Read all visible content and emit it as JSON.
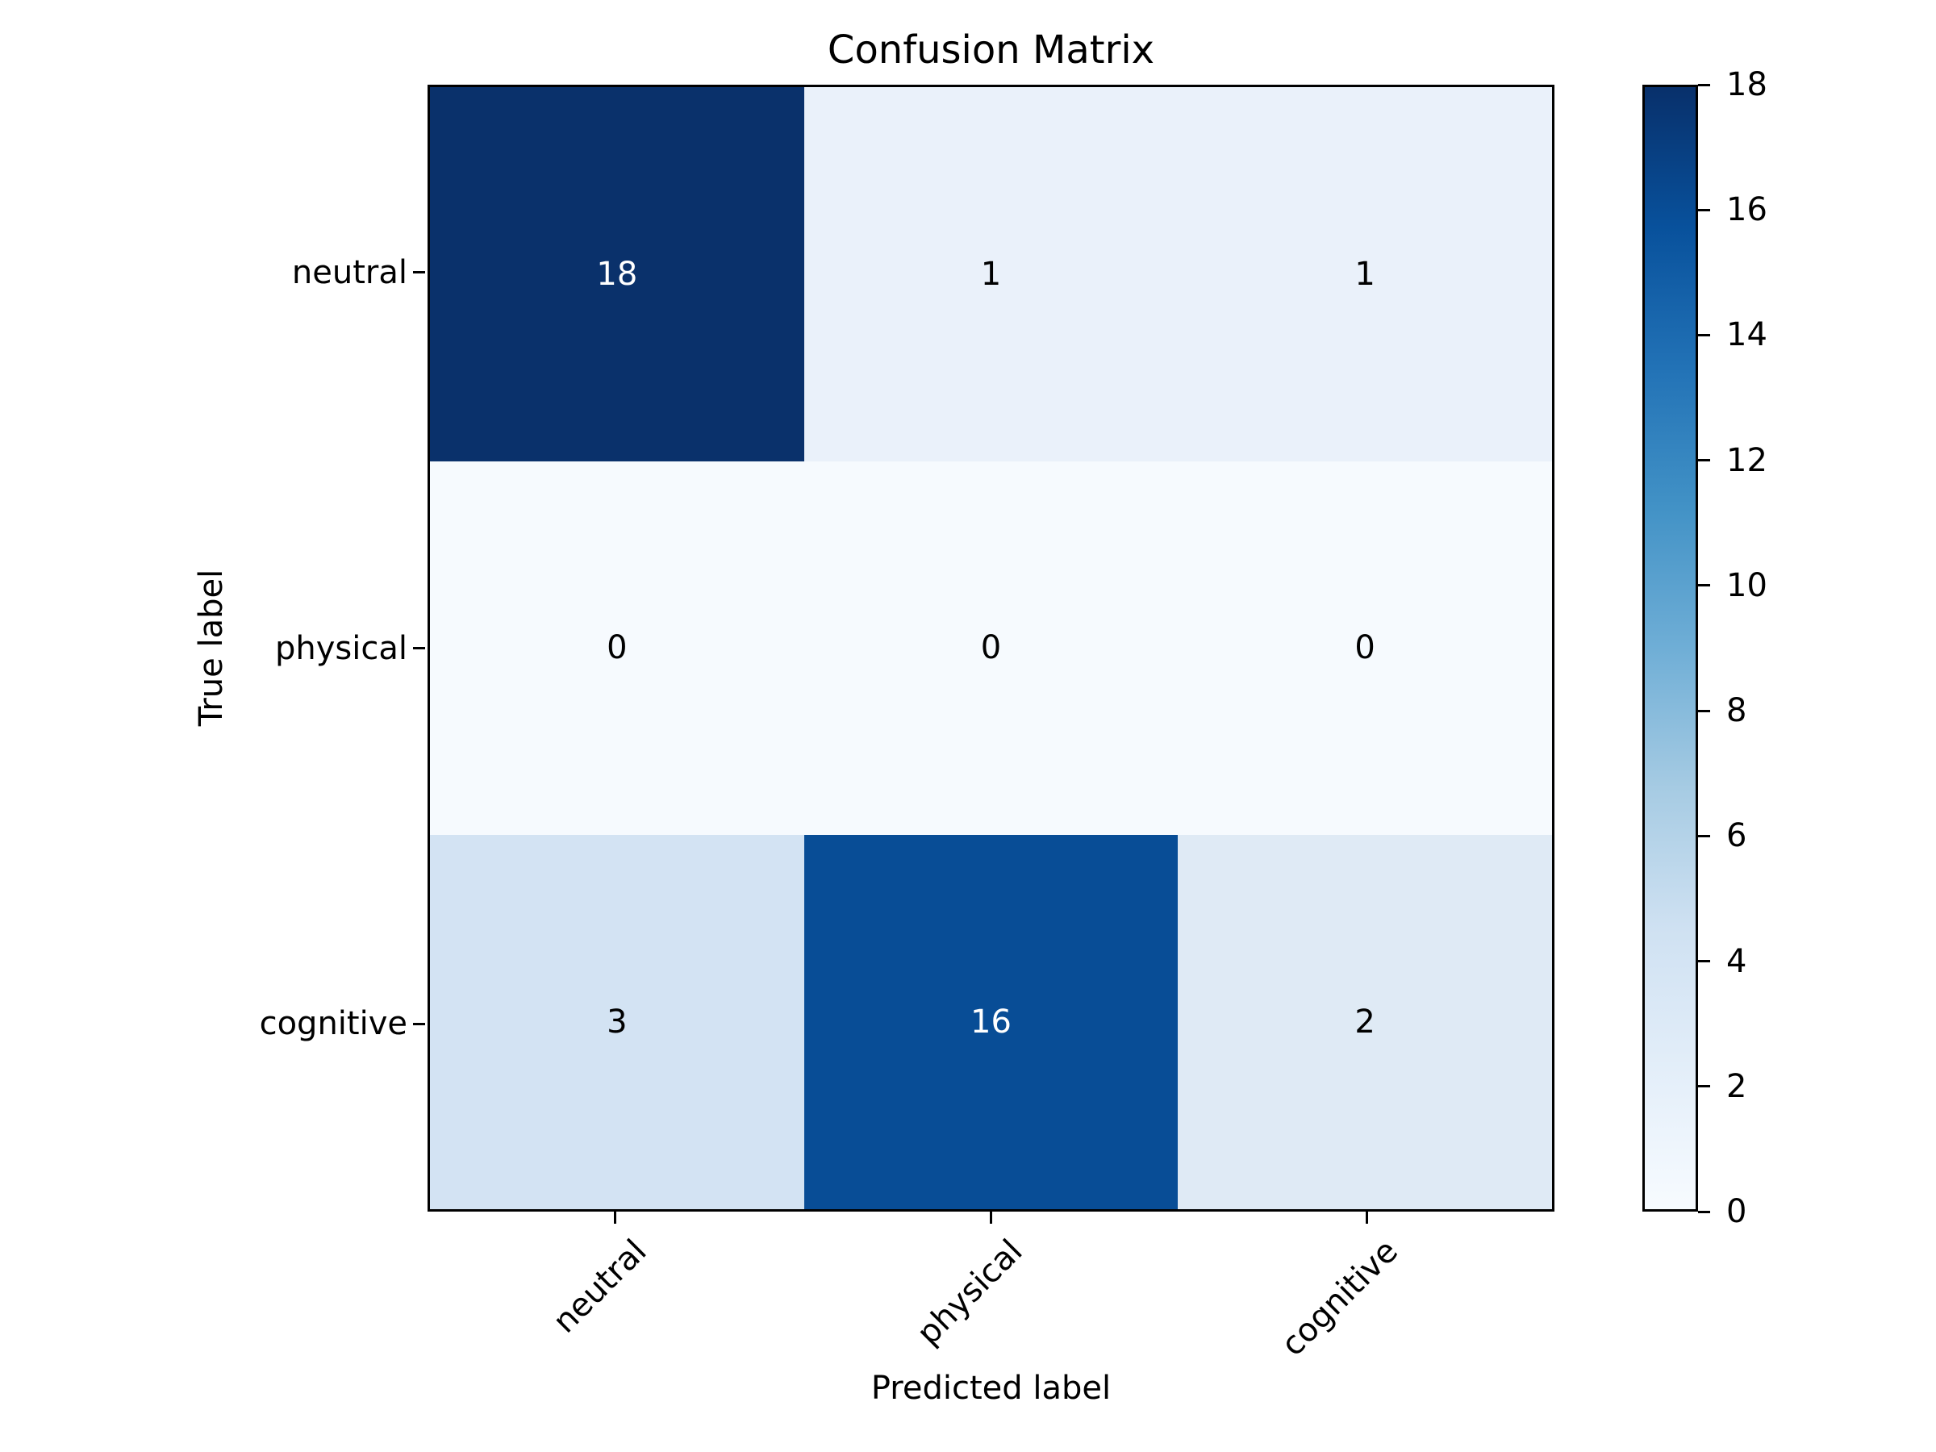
{
  "chart_data": {
    "type": "heatmap",
    "title": "Confusion Matrix",
    "xlabel": "Predicted label",
    "ylabel": "True label",
    "x_categories": [
      "neutral",
      "physical",
      "cognitive"
    ],
    "y_categories": [
      "neutral",
      "physical",
      "cognitive"
    ],
    "values": [
      [
        18,
        1,
        1
      ],
      [
        0,
        0,
        0
      ],
      [
        3,
        16,
        2
      ]
    ],
    "colormap": "Blues",
    "vmin": 0,
    "vmax": 18,
    "grid": false,
    "cell_colors": [
      [
        "#0a316b",
        "#eaf1fa",
        "#eaf1fa"
      ],
      [
        "#f6fafe",
        "#f6fafe",
        "#f6fafe"
      ],
      [
        "#d3e3f3",
        "#084d96",
        "#dfeaf5"
      ]
    ],
    "cell_text_colors": [
      [
        "#ffffff",
        "#000000",
        "#000000"
      ],
      [
        "#000000",
        "#000000",
        "#000000"
      ],
      [
        "#000000",
        "#ffffff",
        "#000000"
      ]
    ],
    "colorbar": {
      "ticks": [
        0,
        2,
        4,
        6,
        8,
        10,
        12,
        14,
        16,
        18
      ],
      "gradient_bottom_to_top": [
        "#f7fbff",
        "#e3eef9",
        "#cfe1f2",
        "#a6cbe3",
        "#6faed6",
        "#4292c6",
        "#2272b6",
        "#08519c",
        "#08306b"
      ]
    }
  },
  "colors": {
    "background": "#ffffff",
    "spine": "#000000",
    "text": "#000000"
  }
}
